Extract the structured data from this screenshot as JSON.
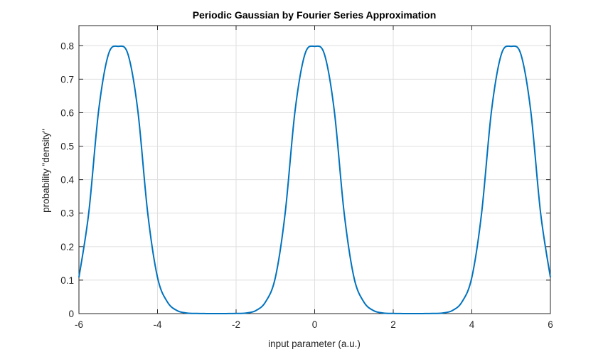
{
  "chart_data": {
    "type": "line",
    "title": "Periodic Gaussian by Fourier Series Approximation",
    "xlabel": "input parameter (a.u.)",
    "ylabel": "probability \"density\"",
    "xlim": [
      -6,
      6
    ],
    "ylim": [
      0,
      0.86
    ],
    "xticks": [
      -6,
      -4,
      -2,
      0,
      2,
      4,
      6
    ],
    "xtick_labels": [
      "-6",
      "-4",
      "-2",
      "0",
      "2",
      "4",
      "6"
    ],
    "yticks": [
      0,
      0.1,
      0.2,
      0.3,
      0.4,
      0.5,
      0.6,
      0.7,
      0.8
    ],
    "ytick_labels": [
      "0",
      "0.1",
      "0.2",
      "0.3",
      "0.4",
      "0.5",
      "0.6",
      "0.7",
      "0.8"
    ],
    "grid": true,
    "line_color": "#0072BD",
    "series": [
      {
        "x": [
          -6,
          -5.75,
          -5.5,
          -5.25,
          -5,
          -4.75,
          -4.5,
          -4.25,
          -4,
          -3.75,
          -3.5,
          -3.25,
          -3,
          -2.75,
          -2.5,
          -2.25,
          -2,
          -1.75,
          -1.5,
          -1.25,
          -1,
          -0.75,
          -0.5,
          -0.25,
          0,
          0.25,
          0.5,
          0.75,
          1,
          1.25,
          1.5,
          1.75,
          2,
          2.25,
          2.5,
          2.75,
          3,
          3.25,
          3.5,
          3.75,
          4,
          4.25,
          4.5,
          4.75,
          5,
          5.25,
          5.5,
          5.75,
          6
        ],
        "y": [
          0.108,
          0.301,
          0.605,
          0.774,
          0.798,
          0.774,
          0.605,
          0.301,
          0.108,
          0.035,
          0.0088,
          0.0017,
          0.0004,
          0.0001,
          0,
          0.0001,
          0.0004,
          0.0017,
          0.0088,
          0.035,
          0.108,
          0.301,
          0.605,
          0.774,
          0.798,
          0.774,
          0.605,
          0.301,
          0.108,
          0.035,
          0.0088,
          0.0017,
          0.0004,
          0.0001,
          0,
          0.0001,
          0.0004,
          0.0017,
          0.0088,
          0.035,
          0.108,
          0.301,
          0.605,
          0.774,
          0.798,
          0.774,
          0.605,
          0.301,
          0.108
        ]
      }
    ]
  }
}
